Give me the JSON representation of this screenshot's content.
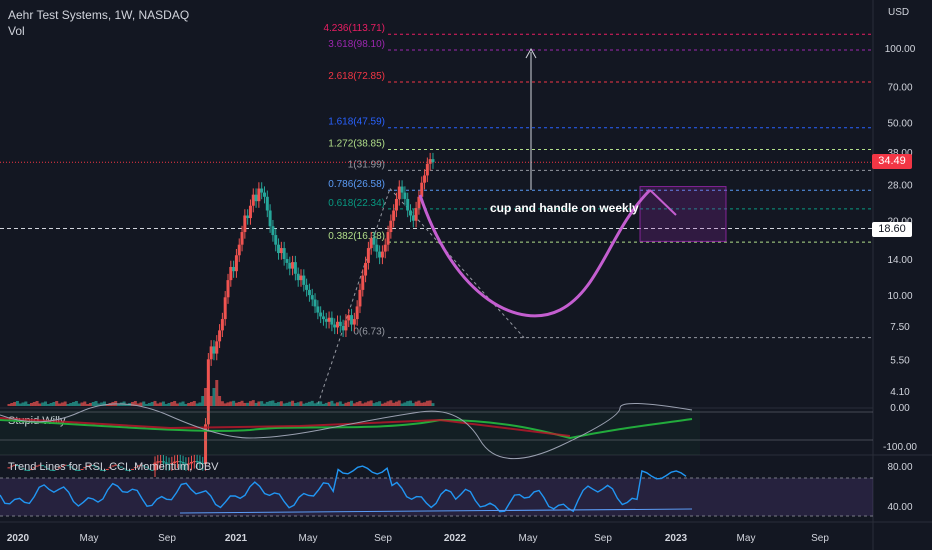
{
  "header": {
    "symbol": "Aehr Test Systems, 1W, NASDAQ",
    "vol": "Vol"
  },
  "colors": {
    "background": "#131722",
    "text": "#d1d4dc",
    "up": "#ef5350",
    "down": "#26a69a",
    "cup": "#c45ed0",
    "rsi": "#2196f3",
    "willy_bull": "#22ab3c",
    "willy_bear": "#c0182b",
    "price_tag": "#f23645",
    "level_tag": "#ffffff",
    "zone": "#9c27b0"
  },
  "price_tags": {
    "last": "34.49",
    "level": "18.60"
  },
  "annotation": "cup and handle on weekly",
  "chart_data": [
    {
      "type": "candlestick",
      "title": "Aehr Test Systems, 1W, NASDAQ",
      "y_axis_label": "USD",
      "y_scale": "log",
      "ylim": [
        3.8,
        140
      ],
      "y_ticks": [
        "100.00",
        "70.00",
        "50.00",
        "38.00",
        "28.00",
        "20.00",
        "14.00",
        "10.00",
        "7.50",
        "5.50",
        "4.10"
      ],
      "x_ticks": [
        "2020",
        "May",
        "Sep",
        "2021",
        "May",
        "Sep",
        "2022",
        "May",
        "Sep",
        "2023",
        "May",
        "Sep"
      ],
      "fib_levels": [
        {
          "label": "4.236(113.71)",
          "value": 113.71,
          "color": "#e91e63"
        },
        {
          "label": "3.618(98.10)",
          "value": 98.1,
          "color": "#9c27b0"
        },
        {
          "label": "2.618(72.85)",
          "value": 72.85,
          "color": "#f23645"
        },
        {
          "label": "1.618(47.59)",
          "value": 47.59,
          "color": "#2962ff"
        },
        {
          "label": "1.272(38.85)",
          "value": 38.85,
          "color": "#b2df8a"
        },
        {
          "label": "1(31.99)",
          "value": 31.99,
          "color": "#9598a1"
        },
        {
          "label": "0.786(26.58)",
          "value": 26.58,
          "color": "#5b9cf6"
        },
        {
          "label": "0.618(22.34)",
          "value": 22.34,
          "color": "#089981"
        },
        {
          "label": "0.382(16.38)",
          "value": 16.38,
          "color": "#b2df8a"
        },
        {
          "label": "0(6.73)",
          "value": 6.73,
          "color": "#9598a1"
        }
      ],
      "last_price": 34.49,
      "horizontal_level": 18.6
    },
    {
      "type": "line",
      "title": "Stupid Willy",
      "y_ticks": [
        "0.00",
        "-100.00"
      ]
    },
    {
      "type": "line",
      "title": "Trend Lines for RSI, CCI, Momentum, OBV",
      "y_ticks": [
        "80.00",
        "40.00"
      ]
    }
  ]
}
